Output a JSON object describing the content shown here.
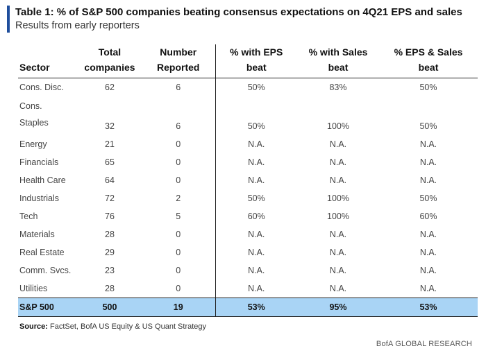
{
  "title": "Table 1: % of S&P 500 companies beating consensus expectations on 4Q21 EPS and sales",
  "subtitle": "Results from early reporters",
  "headers": {
    "sector": "Sector",
    "total_1": "Total",
    "total_2": "companies",
    "reported_1": "Number",
    "reported_2": "Reported",
    "eps_1": "% with EPS",
    "eps_2": "beat",
    "sales_1": "% with Sales",
    "sales_2": "beat",
    "both_1": "% EPS & Sales",
    "both_2": "beat"
  },
  "rows": [
    {
      "sector_line1": "Cons. Disc.",
      "sector_line2": "",
      "total": "62",
      "reported": "6",
      "eps": "50%",
      "sales": "83%",
      "both": "50%"
    },
    {
      "sector_line1": "Cons.",
      "sector_line2": "Staples",
      "total": "32",
      "reported": "6",
      "eps": "50%",
      "sales": "100%",
      "both": "50%"
    },
    {
      "sector_line1": "Energy",
      "sector_line2": "",
      "total": "21",
      "reported": "0",
      "eps": "N.A.",
      "sales": "N.A.",
      "both": "N.A."
    },
    {
      "sector_line1": "Financials",
      "sector_line2": "",
      "total": "65",
      "reported": "0",
      "eps": "N.A.",
      "sales": "N.A.",
      "both": "N.A."
    },
    {
      "sector_line1": "Health Care",
      "sector_line2": "",
      "total": "64",
      "reported": "0",
      "eps": "N.A.",
      "sales": "N.A.",
      "both": "N.A."
    },
    {
      "sector_line1": "Industrials",
      "sector_line2": "",
      "total": "72",
      "reported": "2",
      "eps": "50%",
      "sales": "100%",
      "both": "50%"
    },
    {
      "sector_line1": "Tech",
      "sector_line2": "",
      "total": "76",
      "reported": "5",
      "eps": "60%",
      "sales": "100%",
      "both": "60%"
    },
    {
      "sector_line1": "Materials",
      "sector_line2": "",
      "total": "28",
      "reported": "0",
      "eps": "N.A.",
      "sales": "N.A.",
      "both": "N.A."
    },
    {
      "sector_line1": "Real Estate",
      "sector_line2": "",
      "total": "29",
      "reported": "0",
      "eps": "N.A.",
      "sales": "N.A.",
      "both": "N.A."
    },
    {
      "sector_line1": "Comm. Svcs.",
      "sector_line2": "",
      "total": "23",
      "reported": "0",
      "eps": "N.A.",
      "sales": "N.A.",
      "both": "N.A."
    },
    {
      "sector_line1": "Utilities",
      "sector_line2": "",
      "total": "28",
      "reported": "0",
      "eps": "N.A.",
      "sales": "N.A.",
      "both": "N.A."
    }
  ],
  "total_row": {
    "sector": "S&P 500",
    "total": "500",
    "reported": "19",
    "eps": "53%",
    "sales": "95%",
    "both": "53%"
  },
  "source_label": "Source:",
  "source_text": " FactSet, BofA US Equity & US Quant Strategy",
  "brand": "BofA GLOBAL RESEARCH",
  "colors": {
    "accent_bar": "#1f4e9c",
    "total_row_bg": "#a9d4f5"
  }
}
